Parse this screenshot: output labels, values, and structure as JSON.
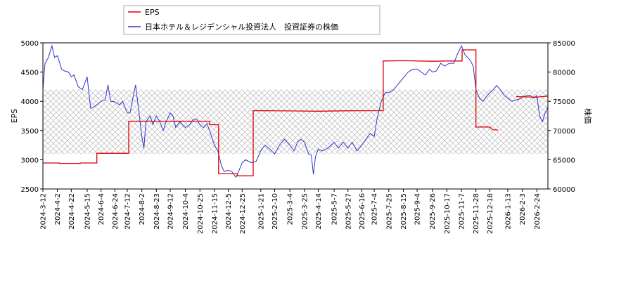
{
  "chart_data": {
    "type": "line",
    "legend": {
      "placement": "top-left",
      "entries": [
        {
          "label": "EPS",
          "color": "#dd0000"
        },
        {
          "label": "日本ホテル＆レジデンシャル投資法人　投資証券の株価",
          "color": "#3333cc"
        }
      ]
    },
    "ylabel_left": "EPS",
    "ylabel_right": "株価",
    "ylim_left": [
      2500,
      5000
    ],
    "ylim_right": [
      60000,
      85000
    ],
    "yticks_left": [
      2500,
      3000,
      3500,
      4000,
      4500,
      5000
    ],
    "yticks_right": [
      60000,
      65000,
      70000,
      75000,
      80000,
      85000
    ],
    "xlim": [
      "2024-03-12",
      "2026-03-12"
    ],
    "xticks": [
      "2024-3-12",
      "2024-4-2",
      "2024-4-22",
      "2024-5-15",
      "2024-6-4",
      "2024-6-24",
      "2024-7-12",
      "2024-8-2",
      "2024-8-23",
      "2024-9-12",
      "2024-10-4",
      "2024-10-25",
      "2024-11-15",
      "2024-12-5",
      "2024-12-25",
      "2025-1-21",
      "2025-2-10",
      "2025-3-4",
      "2025-3-25",
      "2025-4-14",
      "2025-5-7",
      "2025-5-27",
      "2025-6-16",
      "2025-7-4",
      "2025-7-25",
      "2025-8-15",
      "2025-9-4",
      "2025-9-26",
      "2025-10-17",
      "2025-11-7",
      "2025-11-28",
      "2025-12-18",
      "2026-1-13",
      "2026-2-3",
      "2026-2-24"
    ],
    "shaded_band_right": [
      66000,
      77000
    ],
    "eps_series": {
      "name": "EPS",
      "color": "#dd0000",
      "points": [
        [
          "2024-03-12",
          2945
        ],
        [
          "2024-04-05",
          2945
        ],
        [
          "2024-04-05",
          2938
        ],
        [
          "2024-05-05",
          2938
        ],
        [
          "2024-05-05",
          2945
        ],
        [
          "2024-05-29",
          2945
        ],
        [
          "2024-05-29",
          3110
        ],
        [
          "2024-07-14",
          3110
        ],
        [
          "2024-07-14",
          3660
        ],
        [
          "2024-10-25",
          3660
        ],
        [
          "2024-11-08",
          3660
        ],
        [
          "2024-11-08",
          3600
        ],
        [
          "2024-11-21",
          3600
        ],
        [
          "2024-11-21",
          2760
        ],
        [
          "2024-12-18",
          2760
        ],
        [
          "2024-12-18",
          2725
        ],
        [
          "2025-01-10",
          2725
        ],
        [
          "2025-01-10",
          3840
        ],
        [
          "2025-03-04",
          3835
        ],
        [
          "2025-04-14",
          3830
        ],
        [
          "2025-05-27",
          3838
        ],
        [
          "2025-07-17",
          3840
        ],
        [
          "2025-07-17",
          4690
        ],
        [
          "2025-08-15",
          4695
        ],
        [
          "2025-09-26",
          4685
        ],
        [
          "2025-10-17",
          4690
        ],
        [
          "2025-11-08",
          4690
        ],
        [
          "2025-11-08",
          4880
        ],
        [
          "2025-11-28",
          4880
        ],
        [
          "2025-11-28",
          3560
        ],
        [
          "2025-12-18",
          3560
        ],
        [
          "2025-12-22",
          3515
        ],
        [
          "2025-12-30",
          3510
        ],
        null,
        [
          "2026-01-25",
          4080
        ],
        [
          "2026-02-24",
          4070
        ],
        [
          "2026-03-12",
          4090
        ]
      ]
    },
    "price_series": {
      "name": "日本ホテル＆レジデンシャル投資法人　投資証券の株価",
      "color": "#3333cc",
      "points": [
        [
          "2024-03-12",
          77000
        ],
        [
          "2024-03-15",
          81500
        ],
        [
          "2024-03-20",
          82500
        ],
        [
          "2024-03-25",
          84500
        ],
        [
          "2024-03-29",
          82500
        ],
        [
          "2024-04-02",
          82800
        ],
        [
          "2024-04-08",
          80500
        ],
        [
          "2024-04-12",
          80200
        ],
        [
          "2024-04-18",
          80000
        ],
        [
          "2024-04-22",
          79200
        ],
        [
          "2024-04-26",
          79500
        ],
        [
          "2024-05-02",
          77500
        ],
        [
          "2024-05-08",
          77000
        ],
        [
          "2024-05-15",
          79200
        ],
        [
          "2024-05-20",
          73800
        ],
        [
          "2024-05-24",
          74000
        ],
        [
          "2024-05-30",
          74500
        ],
        [
          "2024-06-04",
          75000
        ],
        [
          "2024-06-10",
          75200
        ],
        [
          "2024-06-14",
          77800
        ],
        [
          "2024-06-18",
          75000
        ],
        [
          "2024-06-24",
          74900
        ],
        [
          "2024-07-01",
          74400
        ],
        [
          "2024-07-05",
          75000
        ],
        [
          "2024-07-12",
          73000
        ],
        [
          "2024-07-16",
          73000
        ],
        [
          "2024-07-20",
          75500
        ],
        [
          "2024-07-24",
          77800
        ],
        [
          "2024-07-29",
          73000
        ],
        [
          "2024-08-02",
          69000
        ],
        [
          "2024-08-05",
          67000
        ],
        [
          "2024-08-08",
          71500
        ],
        [
          "2024-08-14",
          72500
        ],
        [
          "2024-08-18",
          71000
        ],
        [
          "2024-08-23",
          72500
        ],
        [
          "2024-08-28",
          71500
        ],
        [
          "2024-09-02",
          70000
        ],
        [
          "2024-09-06",
          71500
        ],
        [
          "2024-09-12",
          73000
        ],
        [
          "2024-09-16",
          72500
        ],
        [
          "2024-09-20",
          70500
        ],
        [
          "2024-09-26",
          71500
        ],
        [
          "2024-10-04",
          70500
        ],
        [
          "2024-10-10",
          71000
        ],
        [
          "2024-10-16",
          72000
        ],
        [
          "2024-10-21",
          71800
        ],
        [
          "2024-10-25",
          71000
        ],
        [
          "2024-10-30",
          70500
        ],
        [
          "2024-11-04",
          71200
        ],
        [
          "2024-11-08",
          70000
        ],
        [
          "2024-11-12",
          68500
        ],
        [
          "2024-11-15",
          67500
        ],
        [
          "2024-11-20",
          66500
        ],
        [
          "2024-11-25",
          64000
        ],
        [
          "2024-11-29",
          63000
        ],
        [
          "2024-12-05",
          63200
        ],
        [
          "2024-12-10",
          63000
        ],
        [
          "2024-12-16",
          62000
        ],
        [
          "2024-12-20",
          63000
        ],
        [
          "2024-12-25",
          64500
        ],
        [
          "2024-12-30",
          65000
        ],
        [
          "2025-01-07",
          64500
        ],
        [
          "2025-01-14",
          64700
        ],
        [
          "2025-01-21",
          66500
        ],
        [
          "2025-01-27",
          67500
        ],
        [
          "2025-02-03",
          66800
        ],
        [
          "2025-02-10",
          66000
        ],
        [
          "2025-02-17",
          67500
        ],
        [
          "2025-02-24",
          68500
        ],
        [
          "2025-03-04",
          67500
        ],
        [
          "2025-03-10",
          66500
        ],
        [
          "2025-03-15",
          68000
        ],
        [
          "2025-03-20",
          68500
        ],
        [
          "2025-03-25",
          68000
        ],
        [
          "2025-03-31",
          66000
        ],
        [
          "2025-04-04",
          65800
        ],
        [
          "2025-04-07",
          62500
        ],
        [
          "2025-04-10",
          65500
        ],
        [
          "2025-04-14",
          66800
        ],
        [
          "2025-04-20",
          66500
        ],
        [
          "2025-04-28",
          67000
        ],
        [
          "2025-05-07",
          68000
        ],
        [
          "2025-05-13",
          67000
        ],
        [
          "2025-05-20",
          68000
        ],
        [
          "2025-05-27",
          67000
        ],
        [
          "2025-06-02",
          68000
        ],
        [
          "2025-06-09",
          66500
        ],
        [
          "2025-06-16",
          67500
        ],
        [
          "2025-06-22",
          68500
        ],
        [
          "2025-06-28",
          69500
        ],
        [
          "2025-07-04",
          69000
        ],
        [
          "2025-07-08",
          72000
        ],
        [
          "2025-07-14",
          75000
        ],
        [
          "2025-07-20",
          76500
        ],
        [
          "2025-07-25",
          76500
        ],
        [
          "2025-08-01",
          77000
        ],
        [
          "2025-08-08",
          78000
        ],
        [
          "2025-08-15",
          79000
        ],
        [
          "2025-08-22",
          80000
        ],
        [
          "2025-08-29",
          80500
        ],
        [
          "2025-09-04",
          80500
        ],
        [
          "2025-09-10",
          80000
        ],
        [
          "2025-09-16",
          79500
        ],
        [
          "2025-09-22",
          80500
        ],
        [
          "2025-09-26",
          80000
        ],
        [
          "2025-10-02",
          80200
        ],
        [
          "2025-10-08",
          81500
        ],
        [
          "2025-10-14",
          81000
        ],
        [
          "2025-10-17",
          81300
        ],
        [
          "2025-10-21",
          81500
        ],
        [
          "2025-10-27",
          81500
        ],
        [
          "2025-11-01",
          83000
        ],
        [
          "2025-11-05",
          84000
        ],
        [
          "2025-11-07",
          84500
        ],
        [
          "2025-11-12",
          83000
        ],
        [
          "2025-11-16",
          82500
        ],
        [
          "2025-11-20",
          82000
        ],
        [
          "2025-11-24",
          81000
        ],
        [
          "2025-11-28",
          77000
        ],
        [
          "2025-12-03",
          75500
        ],
        [
          "2025-12-08",
          75000
        ],
        [
          "2025-12-13",
          75800
        ],
        [
          "2025-12-18",
          76500
        ],
        [
          "2025-12-23",
          77000
        ],
        [
          "2025-12-28",
          77700
        ],
        [
          "2026-01-02",
          77000
        ],
        [
          "2026-01-08",
          76000
        ],
        [
          "2026-01-13",
          75500
        ],
        [
          "2026-01-19",
          75000
        ],
        [
          "2026-01-25",
          75200
        ],
        [
          "2026-02-01",
          75500
        ],
        [
          "2026-02-05",
          75800
        ],
        [
          "2026-02-10",
          76000
        ],
        [
          "2026-02-15",
          76000
        ],
        [
          "2026-02-20",
          75500
        ],
        [
          "2026-02-24",
          76000
        ],
        [
          "2026-02-28",
          72500
        ],
        [
          "2026-03-04",
          71500
        ],
        [
          "2026-03-08",
          73000
        ],
        [
          "2026-03-12",
          74000
        ]
      ]
    }
  }
}
